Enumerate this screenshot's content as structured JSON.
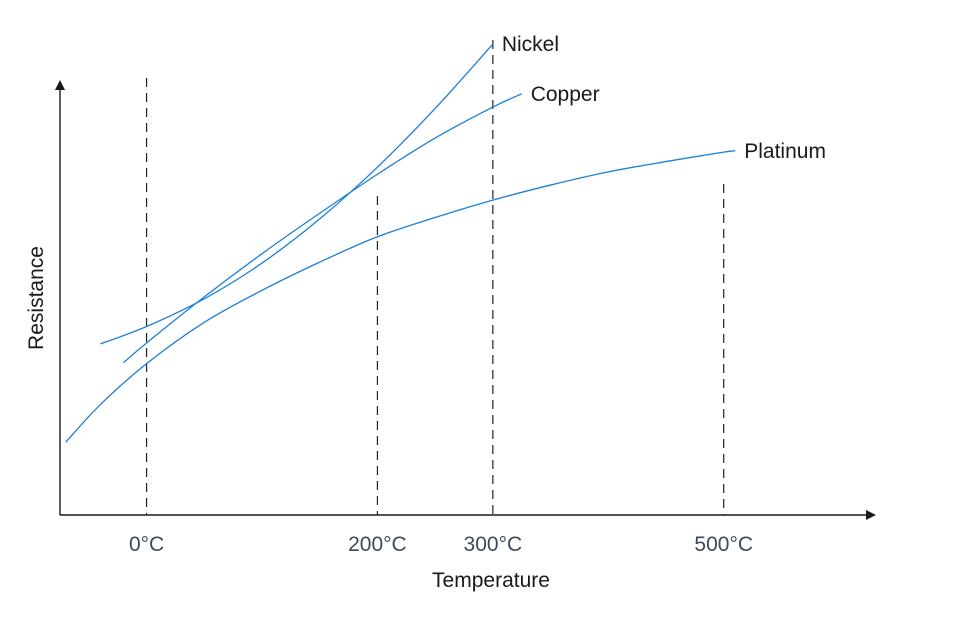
{
  "chart_data": {
    "type": "line",
    "xlabel": "Temperature",
    "ylabel": "Resistance",
    "line_color": "#1e7fd6",
    "xlim": [
      -75,
      625
    ],
    "ylim": [
      0,
      100
    ],
    "x_ticks": [
      {
        "value": 0,
        "label": "0°C"
      },
      {
        "value": 200,
        "label": "200°C"
      },
      {
        "value": 300,
        "label": "300°C"
      },
      {
        "value": 500,
        "label": "500°C"
      }
    ],
    "series": [
      {
        "name": "Nickel",
        "points": [
          [
            -40,
            36.4
          ],
          [
            0,
            40.1
          ],
          [
            50,
            46.0
          ],
          [
            100,
            53.6
          ],
          [
            150,
            63.0
          ],
          [
            200,
            74.0
          ],
          [
            250,
            86.5
          ],
          [
            300,
            100.2
          ]
        ]
      },
      {
        "name": "Copper",
        "points": [
          [
            -20,
            32.4
          ],
          [
            0,
            36.6
          ],
          [
            50,
            46.4
          ],
          [
            100,
            55.6
          ],
          [
            150,
            64.2
          ],
          [
            200,
            72.5
          ],
          [
            250,
            80.2
          ],
          [
            300,
            86.8
          ],
          [
            325,
            89.6
          ]
        ]
      },
      {
        "name": "Platinum",
        "points": [
          [
            -70,
            15.5
          ],
          [
            -40,
            23.5
          ],
          [
            0,
            32.2
          ],
          [
            50,
            41.0
          ],
          [
            100,
            47.8
          ],
          [
            150,
            53.8
          ],
          [
            200,
            59.2
          ],
          [
            250,
            63.3
          ],
          [
            300,
            67.0
          ],
          [
            350,
            70.2
          ],
          [
            400,
            73.0
          ],
          [
            450,
            75.2
          ],
          [
            500,
            77.2
          ],
          [
            510,
            77.5
          ]
        ]
      }
    ]
  }
}
